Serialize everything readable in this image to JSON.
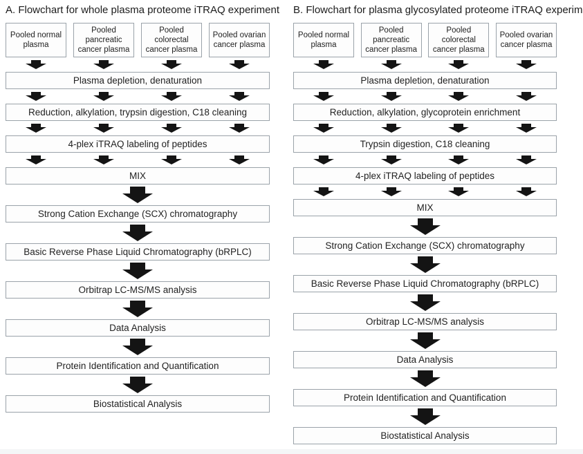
{
  "flowchart_a": {
    "title": "A. Flowchart for whole plasma proteome iTRAQ experiment",
    "sources": [
      "Pooled normal plasma",
      "Pooled pancreatic cancer plasma",
      "Pooled colorectal cancer plasma",
      "Pooled ovarian cancer plasma"
    ],
    "steps": [
      "Plasma depletion, denaturation",
      "Reduction, alkylation, trypsin digestion, C18 cleaning",
      "4-plex iTRAQ labeling of peptides",
      "MIX",
      "Strong Cation Exchange (SCX) chromatography",
      "Basic Reverse Phase Liquid Chromatography (bRPLC)",
      "Orbitrap LC-MS/MS analysis",
      "Data Analysis",
      "Protein Identification and Quantification",
      "Biostatistical Analysis"
    ]
  },
  "flowchart_b": {
    "title": "B. Flowchart for plasma glycosylated proteome iTRAQ experiment",
    "sources": [
      "Pooled normal plasma",
      "Pooled pancreatic cancer plasma",
      "Pooled colorectal cancer plasma",
      "Pooled ovarian cancer plasma"
    ],
    "steps": [
      "Plasma depletion, denaturation",
      "Reduction, alkylation, glycoprotein enrichment",
      "Trypsin digestion, C18 cleaning",
      "4-plex iTRAQ labeling of peptides",
      "MIX",
      "Strong Cation Exchange (SCX) chromatography",
      "Basic Reverse Phase Liquid Chromatography (bRPLC)",
      "Orbitrap LC-MS/MS analysis",
      "Data Analysis",
      "Protein Identification and Quantification",
      "Biostatistical Analysis"
    ]
  },
  "colors": {
    "box_border": "#9aa2a9",
    "arrow": "#141414",
    "text": "#222222"
  }
}
